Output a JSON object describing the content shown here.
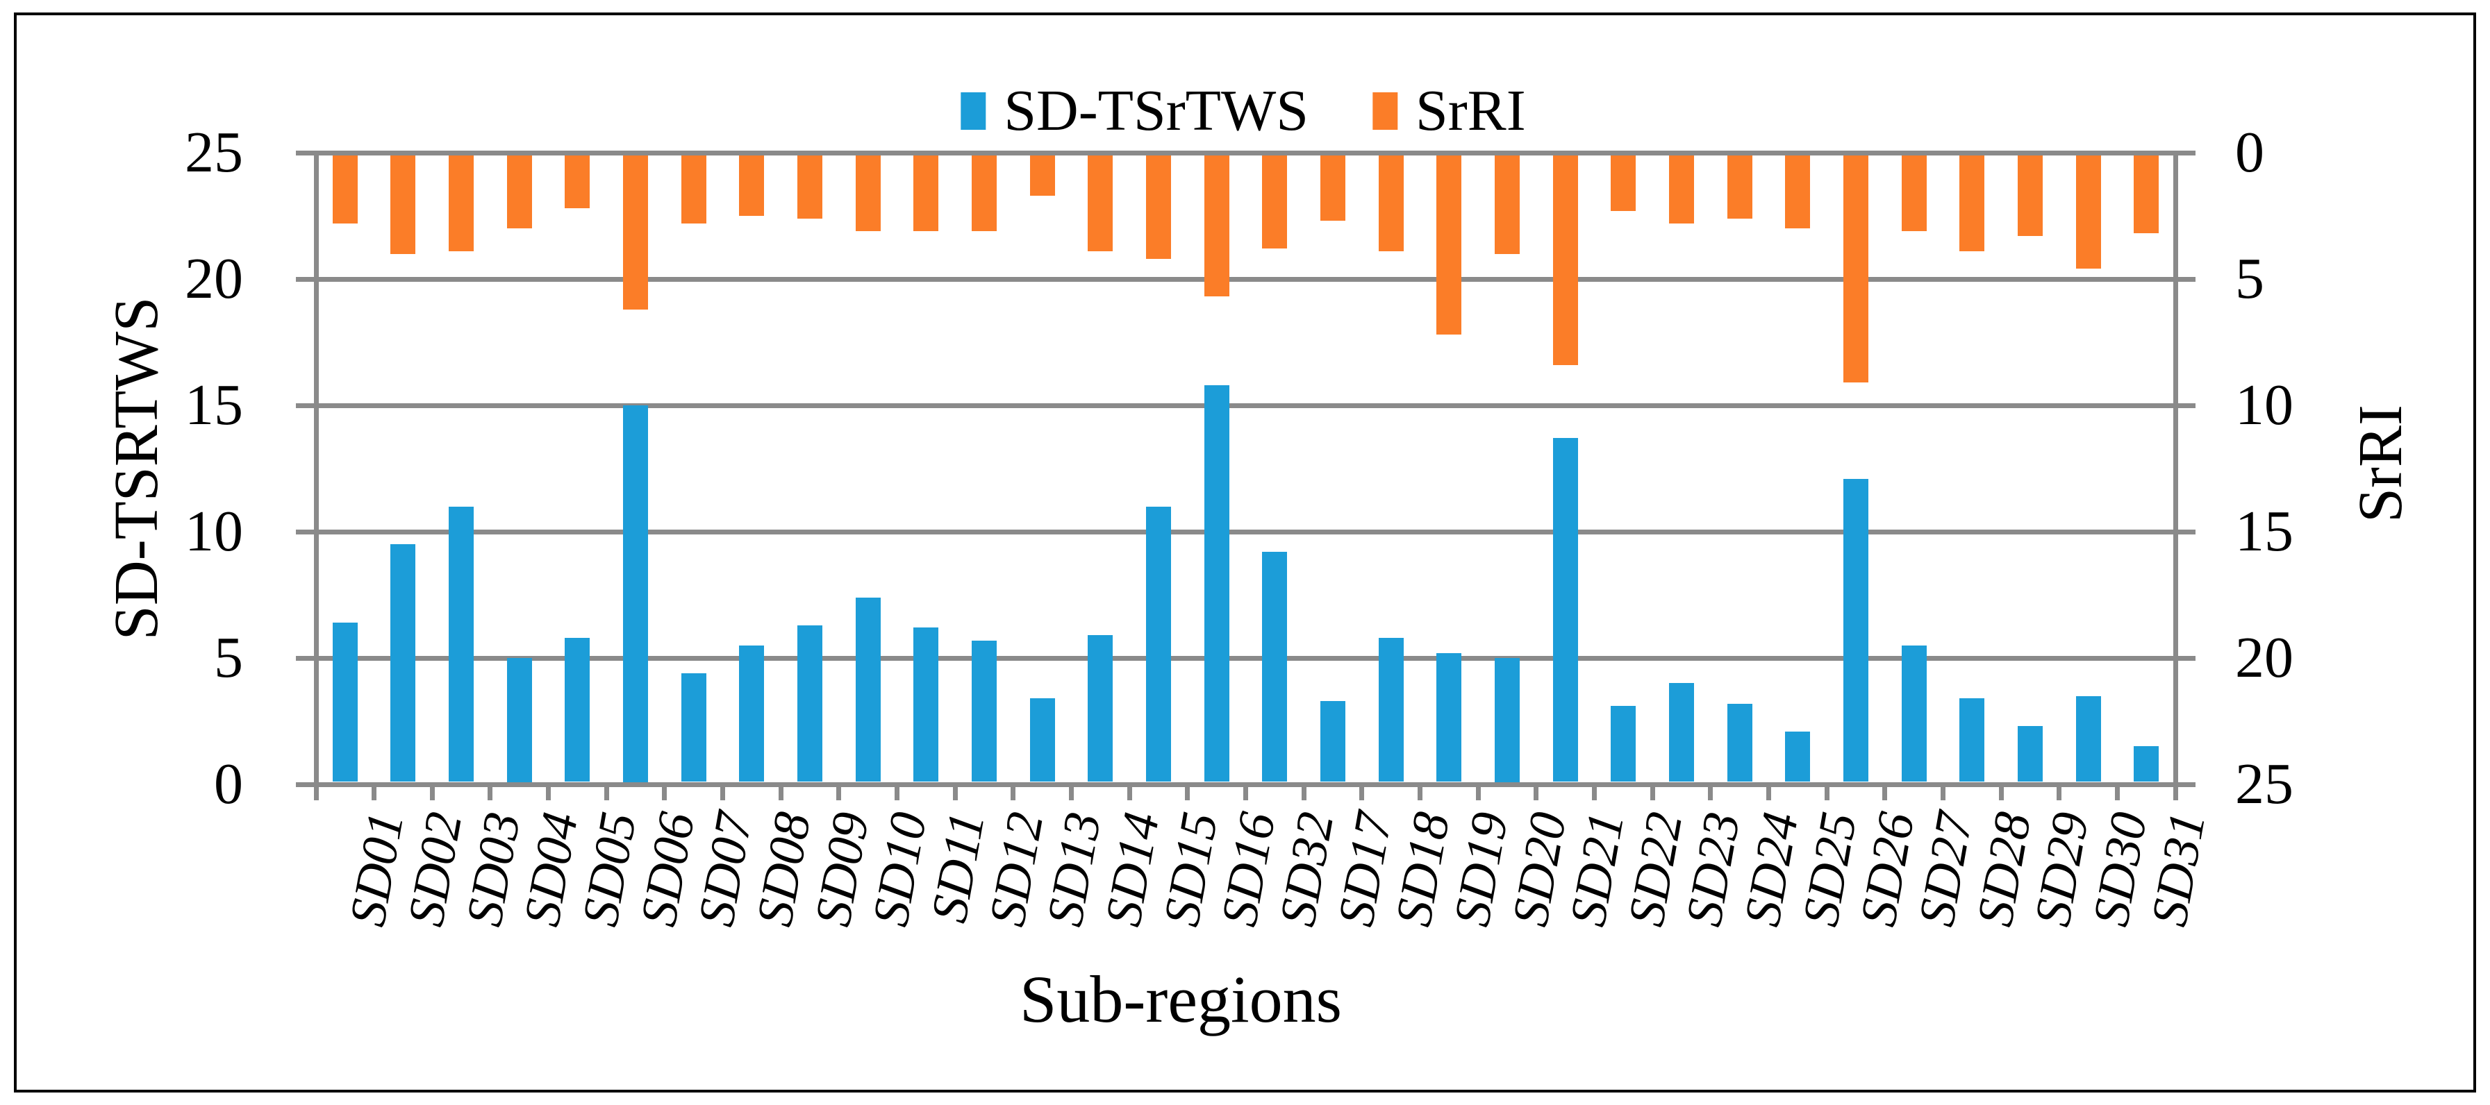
{
  "figure": {
    "background_color": "#FFFFFF",
    "border_color": "#000000"
  },
  "legend": {
    "items": [
      {
        "label": "SD-TSrTWS",
        "color": "#1C9DD8"
      },
      {
        "label": "SrRI",
        "color": "#FB7D28"
      }
    ]
  },
  "chart_data": {
    "type": "bar",
    "title": "",
    "xlabel": "Sub-regions",
    "categories": [
      "SD01",
      "SD02",
      "SD03",
      "SD04",
      "SD05",
      "SD06",
      "SD07",
      "SD08",
      "SD09",
      "SD10",
      "SD11",
      "SD12",
      "SD13",
      "SD14",
      "SD15",
      "SD16",
      "SD32",
      "SD17",
      "SD18",
      "SD19",
      "SD20",
      "SD21",
      "SD22",
      "SD23",
      "SD24",
      "SD25",
      "SD26",
      "SD27",
      "SD28",
      "SD29",
      "SD30",
      "SD31"
    ],
    "series": [
      {
        "name": "SD-TSrTWS",
        "axis": "left",
        "color": "#1C9DD8",
        "values": [
          6.4,
          9.5,
          11.0,
          5.0,
          5.8,
          15.0,
          4.4,
          5.5,
          6.3,
          7.4,
          6.2,
          5.7,
          3.4,
          5.9,
          11.0,
          15.8,
          9.2,
          3.3,
          5.8,
          5.2,
          5.0,
          13.7,
          3.1,
          4.0,
          3.2,
          2.1,
          12.1,
          5.5,
          3.4,
          2.3,
          3.5,
          1.5
        ]
      },
      {
        "name": "SrRI",
        "axis": "right",
        "color": "#FB7D28",
        "values": [
          2.8,
          4.0,
          3.9,
          3.0,
          2.2,
          6.2,
          2.8,
          2.5,
          2.6,
          3.1,
          3.1,
          3.1,
          1.7,
          3.9,
          4.2,
          5.7,
          3.8,
          2.7,
          3.9,
          7.2,
          4.0,
          8.4,
          2.3,
          2.8,
          2.6,
          3.0,
          9.1,
          3.1,
          3.9,
          3.3,
          4.6,
          3.2
        ]
      }
    ],
    "left_axis": {
      "title": "SD-TSRTWS",
      "range": [
        0,
        25
      ],
      "ticks": [
        0,
        5,
        10,
        15,
        20,
        25
      ],
      "reversed": false
    },
    "right_axis": {
      "title": "SrRI",
      "range": [
        0,
        25
      ],
      "ticks": [
        0,
        5,
        10,
        15,
        20,
        25
      ],
      "reversed": true
    },
    "grid": true,
    "gridline_color": "#8A8A8A",
    "legend_position": "top-center"
  }
}
